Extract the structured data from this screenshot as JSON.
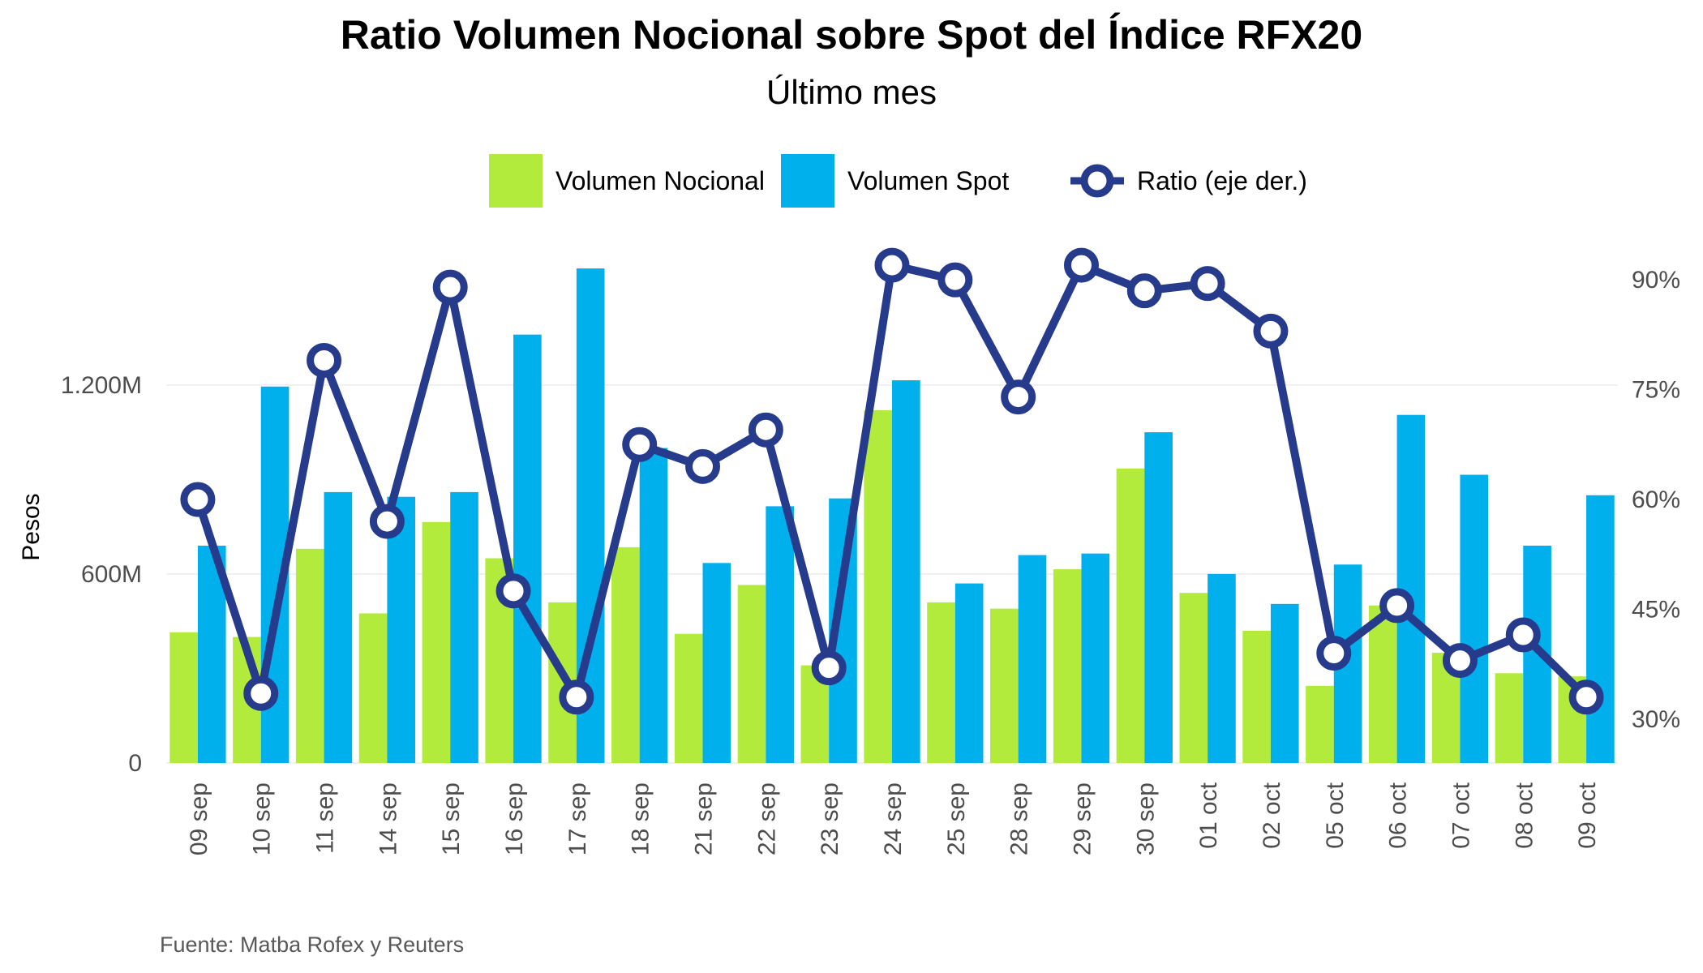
{
  "chart_data": {
    "type": "bar",
    "title": "Ratio Volumen Nocional sobre Spot del Índice RFX20",
    "subtitle": "Último mes",
    "ylabel": "Pesos",
    "y2label": "",
    "source": "Fuente: Matba Rofex y Reuters",
    "categories": [
      "09 sep",
      "10 sep",
      "11 sep",
      "14 sep",
      "15 sep",
      "16 sep",
      "17 sep",
      "18 sep",
      "21 sep",
      "22 sep",
      "23 sep",
      "24 sep",
      "25 sep",
      "28 sep",
      "29 sep",
      "30 sep",
      "01 oct",
      "02 oct",
      "05 oct",
      "06 oct",
      "07 oct",
      "08 oct",
      "09 oct"
    ],
    "series": [
      {
        "name": "Volumen Nocional",
        "type": "bar",
        "color": "#b2eb3c",
        "axis": "left",
        "values": [
          415,
          400,
          680,
          475,
          765,
          650,
          510,
          685,
          410,
          565,
          310,
          1120,
          510,
          490,
          615,
          935,
          540,
          420,
          245,
          500,
          350,
          285,
          275
        ]
      },
      {
        "name": "Volumen Spot",
        "type": "bar",
        "color": "#00b0ed",
        "axis": "left",
        "values": [
          690,
          1195,
          860,
          845,
          860,
          1360,
          1570,
          1000,
          635,
          815,
          840,
          1215,
          570,
          660,
          665,
          1050,
          600,
          505,
          630,
          1105,
          915,
          690,
          850
        ]
      },
      {
        "name": "Ratio (eje der.)",
        "type": "line",
        "color": "#263b8c",
        "axis": "right",
        "values": [
          60,
          33.5,
          79,
          57,
          89,
          47.5,
          33,
          67.5,
          64.5,
          69.5,
          37,
          92,
          90,
          74,
          92,
          88.5,
          89.5,
          83,
          39,
          45.5,
          38,
          41.5,
          33
        ]
      }
    ],
    "y_axis": {
      "ticks": [
        0,
        600,
        1200
      ],
      "tick_labels": [
        "0",
        "600M",
        "1.200M"
      ],
      "range": [
        0,
        1650
      ]
    },
    "y2_axis": {
      "ticks": [
        30,
        45,
        60,
        75,
        90
      ],
      "tick_labels": [
        "30%",
        "45%",
        "60%",
        "75%",
        "90%"
      ],
      "range": [
        24,
        95
      ]
    },
    "grid": true,
    "legend_position": "top"
  }
}
